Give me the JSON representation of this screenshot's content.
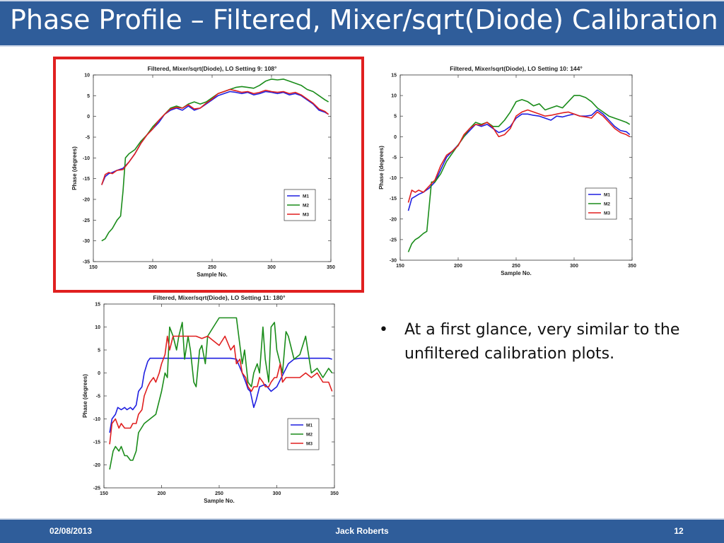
{
  "slide": {
    "title": "Phase Profile – Filtered, Mixer/sqrt(Diode) Calibration",
    "bullet": "At a first glance, very similar to the unfiltered calibration plots.",
    "footer": {
      "date": "02/08/2013",
      "author": "Jack Roberts",
      "page": "12"
    },
    "colors": {
      "title_bar": "#2f5d9a",
      "highlight": "#e02020"
    }
  },
  "chart_data": [
    {
      "type": "line",
      "title": "Filtered, Mixer/sqrt(Diode), LO Setting 9: 108°",
      "xlabel": "Sample No.",
      "ylabel": "Phase (degrees)",
      "xlim": [
        150,
        350
      ],
      "ylim": [
        -35,
        10
      ],
      "xticks": [
        150,
        200,
        250,
        300,
        350
      ],
      "yticks": [
        10,
        5,
        0,
        -5,
        -10,
        -15,
        -20,
        -25,
        -30,
        -35
      ],
      "legend": "lower-right",
      "highlighted": true,
      "series": [
        {
          "name": "M1",
          "color": "#1f1fe0",
          "x": [
            157,
            160,
            163,
            166,
            170,
            175,
            180,
            185,
            190,
            195,
            200,
            205,
            210,
            215,
            220,
            225,
            230,
            235,
            240,
            245,
            250,
            255,
            260,
            265,
            270,
            275,
            280,
            285,
            290,
            295,
            300,
            305,
            310,
            315,
            320,
            325,
            330,
            335,
            340,
            345,
            348
          ],
          "y": [
            -16.5,
            -14.5,
            -13.8,
            -13.5,
            -13,
            -12.5,
            -11,
            -9,
            -6.5,
            -4.5,
            -3,
            -1.5,
            0.5,
            1.5,
            2,
            1.5,
            2.5,
            1.5,
            2,
            3,
            4,
            5,
            5.5,
            6,
            5.8,
            5.5,
            5.8,
            5.2,
            5.5,
            6,
            5.8,
            5.5,
            5.8,
            5.2,
            5.5,
            5,
            4,
            3,
            1.5,
            1,
            0.5
          ]
        },
        {
          "name": "M2",
          "color": "#1a8c1a",
          "x": [
            157,
            160,
            163,
            166,
            170,
            173,
            175,
            177,
            180,
            185,
            190,
            195,
            200,
            205,
            210,
            215,
            220,
            225,
            230,
            235,
            240,
            245,
            250,
            255,
            260,
            265,
            270,
            275,
            280,
            285,
            290,
            295,
            300,
            305,
            310,
            315,
            320,
            325,
            330,
            335,
            340,
            345,
            348
          ],
          "y": [
            -30,
            -29.5,
            -28,
            -27,
            -25,
            -24,
            -18,
            -10,
            -9,
            -8,
            -6,
            -4.5,
            -2.5,
            -1,
            0.5,
            2,
            2.5,
            2,
            3,
            3.5,
            3,
            3.5,
            4.5,
            5.5,
            6,
            6.5,
            7,
            7.2,
            7,
            6.8,
            7.5,
            8.5,
            9,
            8.8,
            9,
            8.5,
            8,
            7.5,
            6.5,
            6,
            5,
            4,
            3.5
          ]
        },
        {
          "name": "M3",
          "color": "#e01f1f",
          "x": [
            157,
            160,
            163,
            166,
            170,
            175,
            180,
            185,
            190,
            195,
            200,
            205,
            210,
            215,
            220,
            225,
            230,
            235,
            240,
            245,
            250,
            255,
            260,
            265,
            270,
            275,
            280,
            285,
            290,
            295,
            300,
            305,
            310,
            315,
            320,
            325,
            330,
            335,
            340,
            345,
            348
          ],
          "y": [
            -16.5,
            -14,
            -13.5,
            -13.8,
            -13,
            -12.8,
            -11,
            -9,
            -6.5,
            -4.5,
            -3,
            -1,
            0.5,
            1.8,
            2.2,
            2,
            2.8,
            1.8,
            2,
            3.2,
            4.2,
            5.5,
            6,
            6.5,
            6.2,
            5.8,
            6,
            5.5,
            5.8,
            6.3,
            6,
            5.8,
            6,
            5.5,
            5.8,
            5.2,
            4.2,
            3.2,
            1.8,
            1.2,
            0.5
          ]
        }
      ]
    },
    {
      "type": "line",
      "title": "Filtered, Mixer/sqrt(Diode), LO Setting 10: 144°",
      "xlabel": "Sample No.",
      "ylabel": "Phase (degrees)",
      "xlim": [
        150,
        350
      ],
      "ylim": [
        -30,
        15
      ],
      "xticks": [
        150,
        200,
        250,
        300,
        350
      ],
      "yticks": [
        15,
        10,
        5,
        0,
        -5,
        -10,
        -15,
        -20,
        -25,
        -30
      ],
      "legend": "lower-right",
      "highlighted": false,
      "series": [
        {
          "name": "M1",
          "color": "#1f1fe0",
          "x": [
            157,
            160,
            163,
            166,
            170,
            175,
            180,
            185,
            190,
            195,
            200,
            205,
            210,
            215,
            220,
            225,
            230,
            235,
            240,
            245,
            250,
            255,
            260,
            265,
            270,
            275,
            280,
            285,
            290,
            295,
            300,
            305,
            310,
            315,
            320,
            325,
            330,
            335,
            340,
            345,
            348
          ],
          "y": [
            -18,
            -15,
            -14.5,
            -14,
            -13.5,
            -12.5,
            -11,
            -8,
            -5,
            -3.5,
            -2,
            0,
            1.5,
            3,
            2.5,
            3,
            2,
            1,
            1.5,
            2.5,
            4.5,
            5.5,
            5.5,
            5.2,
            5,
            4.5,
            4,
            5,
            4.8,
            5.2,
            5.5,
            5,
            5,
            5.2,
            6.5,
            5.5,
            4,
            2.5,
            1.5,
            1.2,
            0.5
          ]
        },
        {
          "name": "M2",
          "color": "#1a8c1a",
          "x": [
            157,
            160,
            163,
            166,
            170,
            173,
            175,
            177,
            180,
            185,
            190,
            195,
            200,
            205,
            210,
            215,
            220,
            225,
            230,
            235,
            240,
            245,
            250,
            255,
            260,
            265,
            270,
            275,
            280,
            285,
            290,
            295,
            300,
            305,
            310,
            315,
            320,
            325,
            330,
            335,
            340,
            345,
            348
          ],
          "y": [
            -28,
            -26,
            -25,
            -24.5,
            -23.5,
            -23,
            -17,
            -11,
            -11,
            -9,
            -6,
            -4,
            -2,
            0,
            2,
            3.5,
            3,
            3.5,
            2.5,
            2.5,
            4,
            6,
            8.5,
            9,
            8.5,
            7.5,
            8,
            6.5,
            7,
            7.5,
            7,
            8.5,
            10,
            10,
            9.5,
            8.5,
            7,
            6,
            5,
            4.5,
            4,
            3.5,
            3
          ]
        },
        {
          "name": "M3",
          "color": "#e01f1f",
          "x": [
            157,
            160,
            163,
            166,
            170,
            175,
            180,
            185,
            190,
            195,
            200,
            205,
            210,
            215,
            220,
            225,
            230,
            235,
            240,
            245,
            250,
            255,
            260,
            265,
            270,
            275,
            280,
            285,
            290,
            295,
            300,
            305,
            310,
            315,
            320,
            325,
            330,
            335,
            340,
            345,
            348
          ],
          "y": [
            -16,
            -13,
            -13.5,
            -13,
            -13.5,
            -12,
            -10.5,
            -7,
            -4.5,
            -3.5,
            -2.2,
            0.5,
            2,
            3,
            2.8,
            3.5,
            2.2,
            0,
            0.5,
            2,
            5,
            6,
            6.5,
            6,
            5.5,
            5,
            5.2,
            5.5,
            5.8,
            6,
            5.5,
            5,
            4.8,
            4.5,
            6,
            5,
            3.5,
            2,
            1,
            0.5,
            0
          ]
        }
      ]
    },
    {
      "type": "line",
      "title": "Filtered, Mixer/sqrt(Diode), LO Setting 11: 180°",
      "xlabel": "Sample No.",
      "ylabel": "Phase (degrees)",
      "xlim": [
        150,
        350
      ],
      "ylim": [
        -25,
        15
      ],
      "xticks": [
        150,
        200,
        250,
        300,
        350
      ],
      "yticks": [
        15,
        10,
        5,
        0,
        -5,
        -10,
        -15,
        -20,
        -25
      ],
      "legend": "lower-right",
      "highlighted": false,
      "series": [
        {
          "name": "M1",
          "color": "#1f1fe0",
          "x": [
            155,
            157,
            160,
            162,
            165,
            168,
            170,
            173,
            175,
            178,
            180,
            183,
            185,
            188,
            190,
            200,
            210,
            220,
            230,
            240,
            250,
            260,
            265,
            270,
            273,
            275,
            277,
            280,
            282,
            285,
            290,
            295,
            300,
            305,
            310,
            315,
            320,
            325,
            330,
            335,
            340,
            345,
            348
          ],
          "y": [
            -13,
            -10,
            -9,
            -7.5,
            -8,
            -7.5,
            -8,
            -7.5,
            -8,
            -7,
            -4,
            -3,
            0,
            2.5,
            3.2,
            3.2,
            3.2,
            3.2,
            3.2,
            3.2,
            3.2,
            3.2,
            3,
            0,
            -2,
            -3.5,
            -4,
            -7.5,
            -6,
            -3,
            -2.5,
            -4,
            -3,
            -0.5,
            2,
            3,
            3.2,
            3.2,
            3.2,
            3.2,
            3.2,
            3.2,
            3
          ]
        },
        {
          "name": "M2",
          "color": "#1a8c1a",
          "x": [
            155,
            158,
            160,
            163,
            165,
            168,
            170,
            173,
            175,
            178,
            180,
            185,
            190,
            195,
            200,
            203,
            205,
            207,
            210,
            213,
            215,
            218,
            220,
            223,
            225,
            228,
            230,
            233,
            235,
            238,
            240,
            245,
            250,
            255,
            260,
            265,
            270,
            272,
            275,
            278,
            280,
            283,
            285,
            288,
            290,
            293,
            295,
            298,
            300,
            303,
            305,
            308,
            310,
            315,
            320,
            325,
            330,
            335,
            340,
            345,
            348
          ],
          "y": [
            -21,
            -17,
            -16,
            -17,
            -16,
            -18,
            -18,
            -19,
            -19,
            -17,
            -13,
            -11,
            -10,
            -9,
            -4,
            0,
            -1,
            10,
            8,
            5,
            8,
            11,
            3,
            8,
            5,
            -2,
            -3,
            5,
            6,
            2,
            8,
            10,
            12,
            12,
            12,
            12,
            2,
            5,
            -2,
            -3,
            0,
            2,
            0,
            10,
            3,
            -2,
            10,
            11,
            5,
            2,
            0,
            9,
            8,
            3,
            4,
            8,
            0,
            1,
            -1,
            1,
            0
          ]
        },
        {
          "name": "M3",
          "color": "#e01f1f",
          "x": [
            155,
            157,
            160,
            163,
            165,
            168,
            170,
            173,
            175,
            178,
            180,
            183,
            185,
            188,
            190,
            193,
            195,
            198,
            200,
            203,
            205,
            207,
            210,
            215,
            220,
            225,
            230,
            235,
            240,
            245,
            250,
            255,
            260,
            263,
            265,
            268,
            270,
            273,
            275,
            278,
            280,
            283,
            285,
            288,
            290,
            293,
            295,
            298,
            300,
            303,
            305,
            308,
            310,
            315,
            320,
            325,
            330,
            335,
            340,
            345,
            348
          ],
          "y": [
            -15.5,
            -11,
            -10,
            -12,
            -11,
            -12,
            -12,
            -12,
            -11,
            -11,
            -9,
            -8,
            -5,
            -3,
            -2,
            -1,
            -2,
            0,
            2,
            4,
            8,
            5,
            8,
            8,
            8,
            8,
            8,
            7.5,
            8,
            7,
            6,
            8,
            5,
            6,
            2,
            3,
            0,
            -1,
            -3,
            -4,
            -3,
            -3,
            -1,
            -2,
            -3,
            -3,
            -2,
            -1,
            -1,
            2,
            -2,
            -1,
            -1,
            -1,
            -1,
            0,
            -1,
            0,
            -2,
            -2,
            -4
          ]
        }
      ]
    }
  ]
}
